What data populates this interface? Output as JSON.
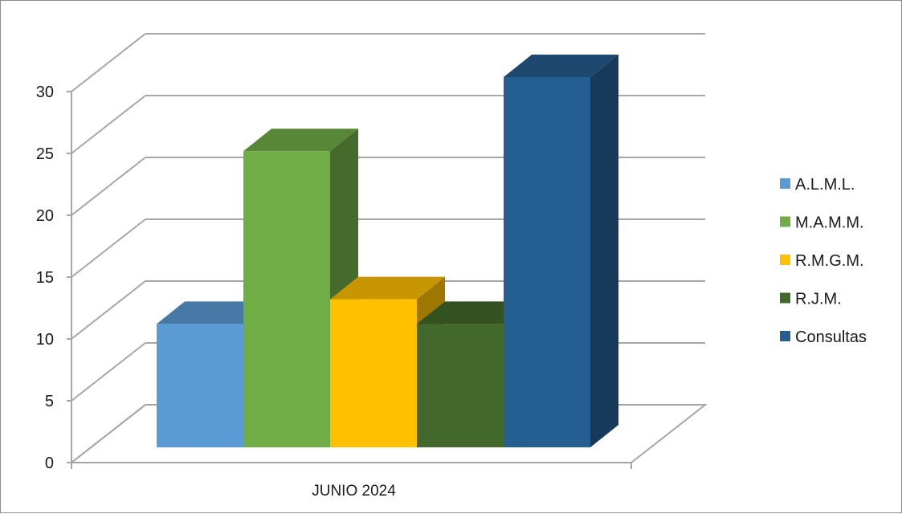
{
  "chart_data": {
    "type": "bar",
    "style": "3d-clustered-column",
    "categories": [
      "JUNIO 2024"
    ],
    "series": [
      {
        "name": "A.L.M.L.",
        "values": [
          10
        ],
        "color": "#5b9bd5"
      },
      {
        "name": "M.A.M.M.",
        "values": [
          24
        ],
        "color": "#70ad47"
      },
      {
        "name": "R.M.G.M.",
        "values": [
          12
        ],
        "color": "#ffc000"
      },
      {
        "name": "R.J.M.",
        "values": [
          10
        ],
        "color": "#43682b"
      },
      {
        "name": "Consultas",
        "values": [
          30
        ],
        "color": "#255e91"
      }
    ],
    "y_ticks": [
      "0",
      "5",
      "10",
      "15",
      "20",
      "25",
      "30"
    ],
    "ylim": [
      0,
      30
    ],
    "grid": true,
    "legend_position": "right"
  }
}
